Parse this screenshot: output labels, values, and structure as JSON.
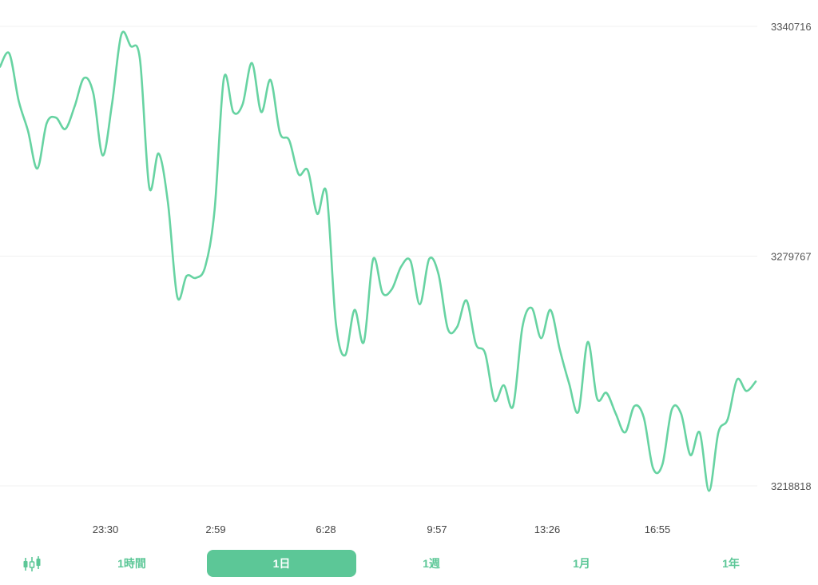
{
  "chart_data": {
    "type": "line",
    "y_ticks": [
      3340716,
      3279767,
      3218818
    ],
    "ylim": [
      3218818,
      3340716
    ],
    "x_tick_labels": [
      "23:30",
      "2:59",
      "6:28",
      "9:57",
      "13:26",
      "16:55"
    ],
    "grid": true,
    "line_color": "#67d3a2",
    "series": [
      {
        "values": [
          3330000,
          3333500,
          3321000,
          3313000,
          3303000,
          3315000,
          3316500,
          3313500,
          3319500,
          3327000,
          3323000,
          3306500,
          3320000,
          3338500,
          3335500,
          3332000,
          3298000,
          3307000,
          3294000,
          3269000,
          3274500,
          3274000,
          3277000,
          3292000,
          3327000,
          3318000,
          3320000,
          3331000,
          3318000,
          3326500,
          3312500,
          3310500,
          3301500,
          3302500,
          3291000,
          3296500,
          3262000,
          3253500,
          3265500,
          3257000,
          3279000,
          3270000,
          3271000,
          3277000,
          3278500,
          3267000,
          3279000,
          3275000,
          3260500,
          3261000,
          3268000,
          3256500,
          3254000,
          3241500,
          3245500,
          3240000,
          3261000,
          3266000,
          3258000,
          3265500,
          3255000,
          3246000,
          3238500,
          3257000,
          3242000,
          3243500,
          3238000,
          3233000,
          3240000,
          3237000,
          3223500,
          3224500,
          3239000,
          3238000,
          3227000,
          3233000,
          3217500,
          3233000,
          3236500,
          3247000,
          3244000,
          3246500
        ]
      }
    ]
  },
  "controls": {
    "candle_icon": "candlestick-icon",
    "ranges": [
      {
        "label": "1時間"
      },
      {
        "label": "1日"
      },
      {
        "label": "1週"
      },
      {
        "label": "1月"
      },
      {
        "label": "1年"
      }
    ],
    "active_color": "#5cc797"
  }
}
